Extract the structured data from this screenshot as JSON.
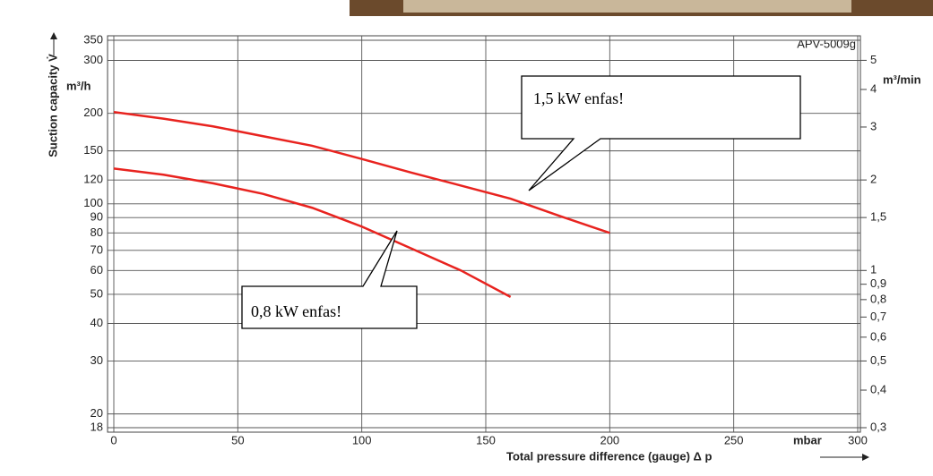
{
  "chart_data": {
    "type": "line",
    "code": "APV-5009g",
    "ylabel": "Suction capacity V̇",
    "yunit": "m³/h",
    "y2unit": "m³/min",
    "xunit": "mbar",
    "xlabel": "Total pressure difference (gauge) Δ p",
    "x": [
      0,
      20,
      40,
      60,
      80,
      100,
      120,
      140,
      160,
      180,
      200
    ],
    "xlim": [
      0,
      300
    ],
    "xticks": [
      0,
      50,
      100,
      150,
      200,
      250,
      300
    ],
    "ylim": [
      18,
      350
    ],
    "ylog": true,
    "yticks": [
      18,
      20,
      30,
      40,
      50,
      60,
      70,
      80,
      90,
      100,
      120,
      150,
      200,
      300,
      350
    ],
    "y2lim": [
      0.3,
      5.83
    ],
    "y2ticks": [
      {
        "value": 0.3,
        "label": "0,3"
      },
      {
        "value": 0.4,
        "label": "0,4"
      },
      {
        "value": 0.5,
        "label": "0,5"
      },
      {
        "value": 0.6,
        "label": "0,6"
      },
      {
        "value": 0.7,
        "label": "0,7"
      },
      {
        "value": 0.8,
        "label": "0,8"
      },
      {
        "value": 0.9,
        "label": "0,9"
      },
      1,
      {
        "value": 1.5,
        "label": "1,5"
      },
      2,
      3,
      4,
      5
    ],
    "grid": true,
    "series": [
      {
        "name": "1,5 kW enfas!",
        "color": "#e8231f",
        "values": [
          202,
          192,
          181,
          168,
          156,
          141,
          127,
          115,
          104,
          91,
          80
        ]
      },
      {
        "name": "0,8 kW enfas!",
        "color": "#e8231f",
        "values": [
          131,
          125,
          117,
          108,
          97,
          84,
          71,
          60,
          49,
          null,
          null
        ]
      }
    ]
  }
}
